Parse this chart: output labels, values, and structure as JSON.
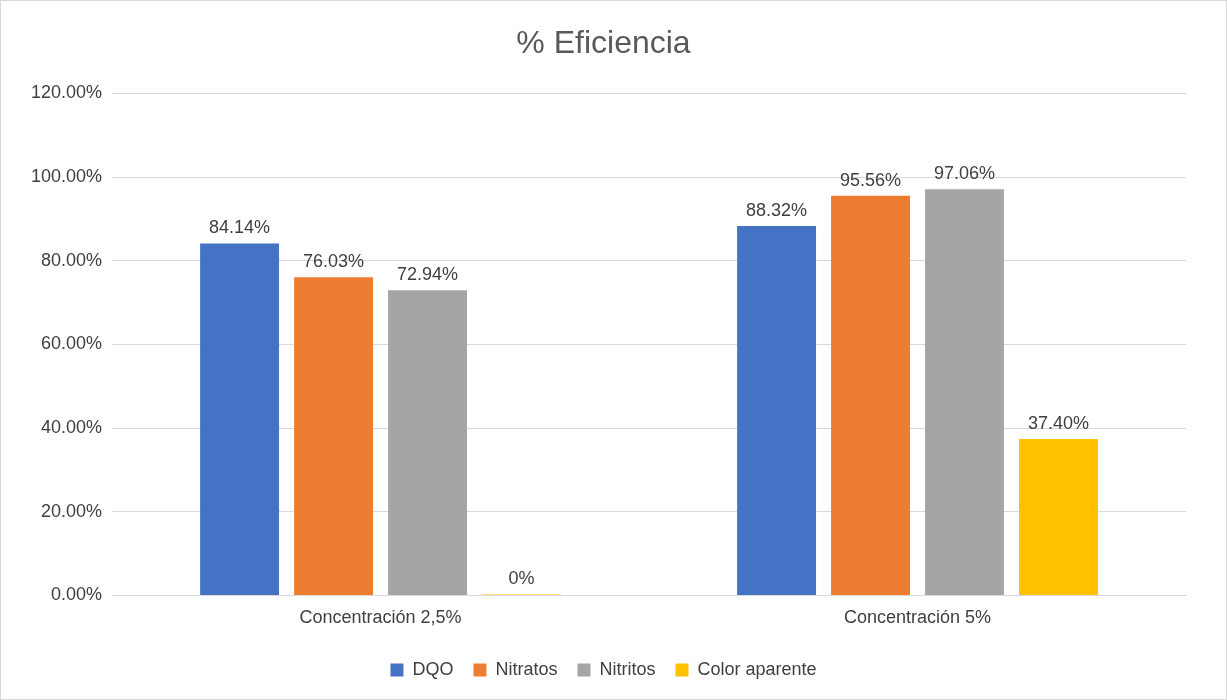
{
  "chart_data": {
    "type": "bar",
    "title": "% Eficiencia",
    "categories": [
      "Concentración 2,5%",
      "Concentración 5%"
    ],
    "series": [
      {
        "name": "DQO",
        "color": "#4472c4",
        "values": [
          84.14,
          88.32
        ],
        "value_labels": [
          "84.14%",
          "88.32%"
        ]
      },
      {
        "name": "Nitratos",
        "color": "#ed7d31",
        "values": [
          76.03,
          95.56
        ],
        "value_labels": [
          "76.03%",
          "95.56%"
        ]
      },
      {
        "name": "Nitritos",
        "color": "#a5a5a5",
        "values": [
          72.94,
          97.06
        ],
        "value_labels": [
          "72.94%",
          "97.06%"
        ]
      },
      {
        "name": "Color aparente",
        "color": "#ffc000",
        "values": [
          0,
          37.4
        ],
        "value_labels": [
          "0%",
          "37.40%"
        ]
      }
    ],
    "ylim": [
      0,
      120
    ],
    "yticks": [
      {
        "value": 0,
        "label": "0.00%"
      },
      {
        "value": 20,
        "label": "20.00%"
      },
      {
        "value": 40,
        "label": "40.00%"
      },
      {
        "value": 60,
        "label": "60.00%"
      },
      {
        "value": 80,
        "label": "80.00%"
      },
      {
        "value": 100,
        "label": "100.00%"
      },
      {
        "value": 120,
        "label": "120.00%"
      }
    ],
    "grid": "y",
    "legend": "bottom"
  }
}
